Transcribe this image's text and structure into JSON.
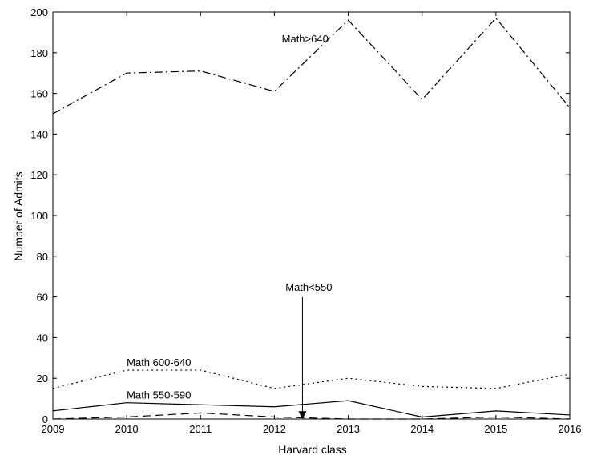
{
  "chart_data": {
    "type": "line",
    "title": "",
    "xlabel": "Harvard class",
    "ylabel": "Number of Admits",
    "xlim": [
      2009,
      2016
    ],
    "ylim": [
      0,
      200
    ],
    "x_ticks": [
      "2009",
      "2010",
      "2011",
      "2012",
      "2013",
      "2014",
      "2015",
      "2016"
    ],
    "y_ticks": [
      "0",
      "20",
      "40",
      "60",
      "80",
      "100",
      "120",
      "140",
      "160",
      "180",
      "200"
    ],
    "grid": false,
    "x": [
      2009,
      2010,
      2011,
      2012,
      2013,
      2014,
      2015,
      2016
    ],
    "series": [
      {
        "values": [
          150,
          170,
          171,
          161,
          196,
          157,
          197,
          153
        ],
        "style": "dashdot",
        "color": "#000000"
      },
      {
        "values": [
          15,
          24,
          24,
          15,
          20,
          16,
          15,
          22
        ],
        "style": "dotted",
        "color": "#000000"
      },
      {
        "values": [
          4,
          8,
          7,
          6,
          9,
          1,
          4,
          2
        ],
        "style": "solid",
        "color": "#000000"
      },
      {
        "values": [
          0,
          1,
          3,
          1,
          0,
          0,
          1,
          0
        ],
        "style": "dashed",
        "color": "#000000"
      }
    ],
    "annotations": [
      {
        "text": "Math>640",
        "x": 2012.1,
        "y": 185
      },
      {
        "text": "Math 600-640",
        "x": 2010.0,
        "y": 26
      },
      {
        "text": "Math 550-590",
        "x": 2010.0,
        "y": 10
      },
      {
        "text": "Math<550",
        "x": 2012.15,
        "y": 63,
        "arrow_to": {
          "x": 2012.38,
          "y": 0.3
        }
      }
    ]
  }
}
